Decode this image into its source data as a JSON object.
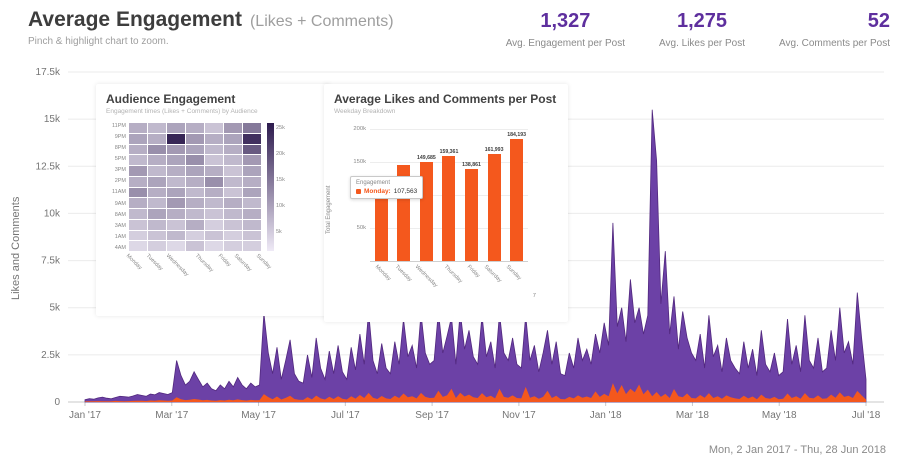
{
  "header": {
    "title": "Average Engagement",
    "title_suffix": "(Likes + Comments)",
    "subtitle": "Pinch & highlight chart to zoom.",
    "stats": [
      {
        "value": "1,327",
        "label": "Avg. Engagement per Post"
      },
      {
        "value": "1,275",
        "label": "Avg. Likes per Post"
      },
      {
        "value": "52",
        "label": "Avg. Comments per Post"
      }
    ]
  },
  "footer": {
    "date_range": "Mon, 2 Jan 2017 - Thu, 28 Jun 2018"
  },
  "colors": {
    "purple": "#5e2f9e",
    "purple_fill": "#6c41a6",
    "purple_stroke": "#52287f",
    "orange": "#f4581d",
    "grid": "#ebebeb",
    "text_gray": "#757575"
  },
  "chart_data": [
    {
      "type": "area",
      "title": "Average Engagement timeline",
      "ylabel": "Likes and Comments",
      "ylim": [
        0,
        17500
      ],
      "y_ticks": [
        "17.5k",
        "15k",
        "12.5k",
        "10k",
        "7.5k",
        "5k",
        "2.5k",
        "0"
      ],
      "x_ticks": [
        "Jan '17",
        "Mar '17",
        "May '17",
        "Jul '17",
        "Sep '17",
        "Nov '17",
        "Jan '18",
        "Mar '18",
        "May '18",
        "Jul '18"
      ],
      "grid": true,
      "series": [
        {
          "name": "Likes + Comments",
          "color": "#6c41a6",
          "stroke": "#52287f",
          "values": [
            120,
            180,
            150,
            220,
            260,
            200,
            170,
            240,
            300,
            280,
            260,
            320,
            400,
            350,
            300,
            420,
            380,
            500,
            450,
            400,
            500,
            2200,
            1400,
            900,
            1100,
            1600,
            1200,
            800,
            1000,
            700,
            600,
            900,
            700,
            1100,
            800,
            1300,
            900,
            700,
            1000,
            800,
            900,
            4700,
            2600,
            1500,
            2900,
            1200,
            2200,
            3300,
            1500,
            1100,
            1000,
            2500,
            1300,
            3400,
            1800,
            1200,
            2700,
            1500,
            3000,
            1600,
            1200,
            2900,
            1700,
            3600,
            2000,
            4800,
            2200,
            1500,
            3100,
            1800,
            1500,
            3200,
            2000,
            4400,
            2400,
            3000,
            1800,
            4700,
            2600,
            2000,
            2200,
            4800,
            2600,
            3500,
            4500,
            2000,
            4800,
            2800,
            3800,
            2400,
            2000,
            4600,
            2400,
            3200,
            1800,
            4700,
            2600,
            2200,
            3400,
            2000,
            1800,
            4600,
            2200,
            3000,
            1600,
            2600,
            3800,
            2000,
            3200,
            1500,
            1400,
            2600,
            1800,
            3400,
            2200,
            2800,
            2000,
            3600,
            2600,
            4200,
            3000,
            9500,
            4000,
            5000,
            3200,
            6500,
            4200,
            5000,
            3600,
            4600,
            15500,
            12800,
            5200,
            8000,
            3600,
            5600,
            2800,
            4800,
            3400,
            2600,
            2200,
            3600,
            1800,
            4600,
            2400,
            3000,
            1600,
            3400,
            2200,
            1800,
            1500,
            3200,
            1800,
            2800,
            1400,
            3800,
            2000,
            1600,
            2600,
            1400,
            1600,
            4400,
            2000,
            3000,
            1600,
            4600,
            2200,
            1800,
            3400,
            1600,
            1800,
            3800,
            2200,
            5000,
            2600,
            3200,
            2000,
            5800,
            3400,
            1200
          ]
        },
        {
          "name": "Comments",
          "color": "#f4581d",
          "stroke": "none",
          "values": [
            30,
            40,
            35,
            50,
            45,
            40,
            35,
            60,
            50,
            45,
            50,
            60,
            70,
            65,
            55,
            80,
            70,
            90,
            80,
            70,
            80,
            250,
            150,
            100,
            120,
            160,
            130,
            90,
            110,
            80,
            70,
            100,
            80,
            120,
            90,
            140,
            100,
            80,
            110,
            90,
            100,
            420,
            260,
            150,
            290,
            130,
            220,
            330,
            160,
            120,
            110,
            260,
            140,
            340,
            190,
            130,
            280,
            160,
            300,
            170,
            130,
            300,
            180,
            370,
            210,
            480,
            230,
            160,
            320,
            190,
            160,
            330,
            210,
            450,
            250,
            310,
            190,
            480,
            270,
            210,
            230,
            600,
            270,
            360,
            700,
            210,
            490,
            290,
            390,
            250,
            210,
            470,
            250,
            330,
            190,
            700,
            270,
            230,
            350,
            210,
            190,
            800,
            230,
            310,
            170,
            270,
            600,
            210,
            330,
            160,
            150,
            270,
            190,
            350,
            230,
            290,
            210,
            560,
            270,
            430,
            300,
            1000,
            460,
            900,
            420,
            700,
            520,
            930,
            410,
            660,
            310,
            530,
            270,
            430,
            210,
            690,
            310,
            250,
            450,
            210,
            190,
            370,
            230,
            470,
            210,
            310,
            170,
            350,
            250,
            190,
            160,
            330,
            190,
            290,
            150,
            390,
            210,
            170,
            270,
            150,
            170,
            450,
            210,
            310,
            170,
            470,
            230,
            190,
            350,
            170,
            190,
            390,
            230,
            510,
            270,
            330,
            210,
            590,
            350,
            130
          ]
        }
      ]
    },
    {
      "type": "heatmap",
      "title": "Audience Engagement",
      "subtitle": "Engagement times (Likes + Comments) by Audience",
      "rows": [
        "11PM",
        "9PM",
        "8PM",
        "5PM",
        "3PM",
        "2PM",
        "11AM",
        "9AM",
        "8AM",
        "3AM",
        "1AM",
        "4AM"
      ],
      "cols": [
        "Monday",
        "Tuesday",
        "Wednesday",
        "Thursday",
        "Friday",
        "Saturday",
        "Sunday"
      ],
      "legend_ticks": [
        "25k",
        "20k",
        "15k",
        "10k",
        "5k"
      ],
      "values": [
        [
          0.3,
          0.25,
          0.35,
          0.3,
          0.2,
          0.4,
          0.55
        ],
        [
          0.35,
          0.3,
          0.95,
          0.4,
          0.3,
          0.35,
          0.9
        ],
        [
          0.3,
          0.45,
          0.4,
          0.35,
          0.25,
          0.3,
          0.7
        ],
        [
          0.25,
          0.3,
          0.35,
          0.45,
          0.2,
          0.25,
          0.4
        ],
        [
          0.4,
          0.25,
          0.3,
          0.35,
          0.3,
          0.2,
          0.35
        ],
        [
          0.3,
          0.35,
          0.25,
          0.3,
          0.45,
          0.25,
          0.3
        ],
        [
          0.45,
          0.3,
          0.35,
          0.25,
          0.3,
          0.2,
          0.35
        ],
        [
          0.3,
          0.25,
          0.4,
          0.3,
          0.25,
          0.3,
          0.25
        ],
        [
          0.25,
          0.35,
          0.3,
          0.25,
          0.2,
          0.25,
          0.3
        ],
        [
          0.2,
          0.25,
          0.2,
          0.3,
          0.15,
          0.2,
          0.25
        ],
        [
          0.15,
          0.2,
          0.25,
          0.15,
          0.2,
          0.15,
          0.2
        ],
        [
          0.1,
          0.15,
          0.1,
          0.2,
          0.1,
          0.15,
          0.15
        ]
      ]
    },
    {
      "type": "bar",
      "title": "Average Likes and Comments per Post",
      "subtitle": "Weekday Breakdown",
      "ylabel": "Total Engagement",
      "ylim": [
        0,
        200000
      ],
      "y_ticks": [
        "200k",
        "150k",
        "100k",
        "50k"
      ],
      "y_tick_values": [
        200000,
        150000,
        100000,
        50000
      ],
      "categories": [
        "Monday",
        "Tuesday",
        "Wednesday",
        "Thursday",
        "Friday",
        "Saturday",
        "Sunday"
      ],
      "values": [
        107563,
        145000,
        149685,
        159361,
        138861,
        161993,
        184193
      ],
      "bar_labels": [
        "",
        "",
        "149,685",
        "159,361",
        "138,861",
        "161,993",
        "184,193"
      ],
      "x_end_tick": "7",
      "tooltip": {
        "header": "Engagement",
        "label": "Monday:",
        "value": "107,563"
      }
    }
  ]
}
